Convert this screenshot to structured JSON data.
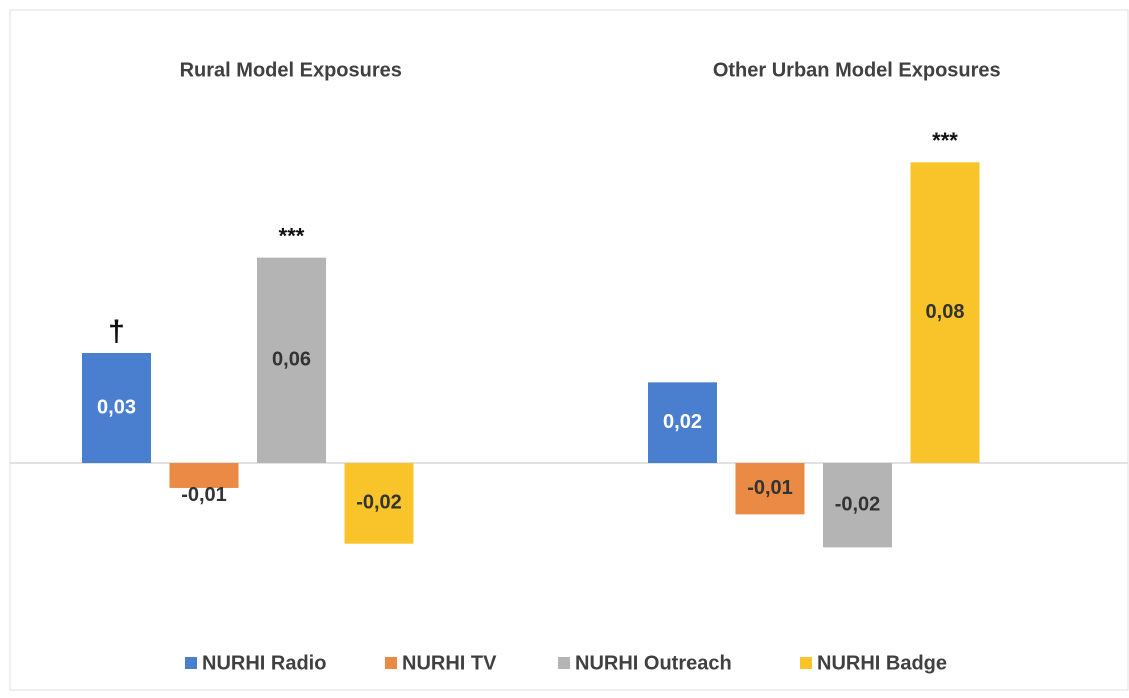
{
  "chart_data": {
    "type": "bar",
    "categories": [
      "Rural Model Exposures",
      "Other Urban Model Exposures"
    ],
    "series": [
      {
        "name": "NURHI Radio",
        "color": "#4a7fd0",
        "values": [
          0.03,
          0.022
        ],
        "value_labels": [
          "0,03",
          "0,02"
        ],
        "annotations": [
          "†",
          null
        ]
      },
      {
        "name": "NURHI TV",
        "color": "#ea8a45",
        "values": [
          -0.0068,
          -0.014
        ],
        "value_labels": [
          "-0,01",
          "-0,01"
        ],
        "annotations": [
          null,
          null
        ]
      },
      {
        "name": "NURHI Outreach",
        "color": "#b4b4b4",
        "values": [
          0.056,
          -0.023
        ],
        "value_labels": [
          "0,06",
          "-0,02"
        ],
        "annotations": [
          "***",
          null
        ]
      },
      {
        "name": "NURHI Badge",
        "color": "#f9c42a",
        "values": [
          -0.022,
          0.082
        ],
        "value_labels": [
          "-0,02",
          "0,08"
        ],
        "annotations": [
          null,
          "***"
        ]
      }
    ],
    "ylim": [
      -0.04,
      0.1
    ],
    "grid": false,
    "legend": "bottom"
  }
}
